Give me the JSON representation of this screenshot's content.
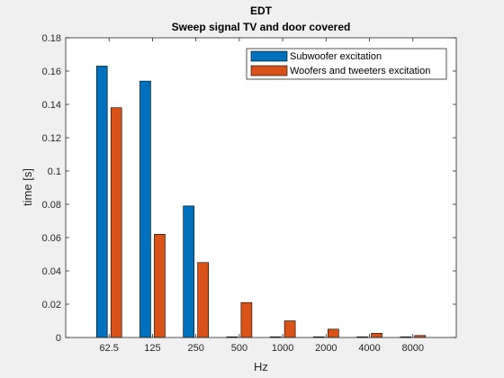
{
  "chart_data": {
    "type": "bar",
    "title": "EDT",
    "subtitle": "Sweep signal TV and door  covered",
    "xlabel": "Hz",
    "ylabel": "time [s]",
    "ylim": [
      0,
      0.18
    ],
    "yticks": [
      "0",
      "0.02",
      "0.04",
      "0.06",
      "0.08",
      "0.1",
      "0.12",
      "0.14",
      "0.16",
      "0.18"
    ],
    "categories": [
      "62.5",
      "125",
      "250",
      "500",
      "1000",
      "2000",
      "4000",
      "8000"
    ],
    "series": [
      {
        "name": "Subwoofer excitation",
        "color": "#0072bd",
        "values": [
          0.163,
          0.154,
          0.079,
          0.0,
          0.0,
          0.0,
          0.0,
          0.0
        ]
      },
      {
        "name": "Woofers and tweeters excitation",
        "color": "#d95319",
        "values": [
          0.138,
          0.062,
          0.045,
          0.021,
          0.01,
          0.005,
          0.0025,
          0.0012
        ]
      }
    ],
    "legend_position": "top-right",
    "grid": false
  }
}
